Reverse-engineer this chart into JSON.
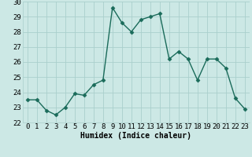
{
  "x": [
    0,
    1,
    2,
    3,
    4,
    5,
    6,
    7,
    8,
    9,
    10,
    11,
    12,
    13,
    14,
    15,
    16,
    17,
    18,
    19,
    20,
    21,
    22,
    23
  ],
  "y": [
    23.5,
    23.5,
    22.8,
    22.5,
    23.0,
    23.9,
    23.8,
    24.5,
    24.8,
    29.6,
    28.6,
    28.0,
    28.8,
    29.0,
    29.2,
    26.2,
    26.7,
    26.2,
    24.8,
    26.2,
    26.2,
    25.6,
    23.6,
    22.9
  ],
  "line_color": "#1a6b5a",
  "marker": "D",
  "markersize": 2.5,
  "linewidth": 1.0,
  "xlabel": "Humidex (Indice chaleur)",
  "xlabel_fontsize": 7,
  "ylim": [
    22,
    30
  ],
  "xlim": [
    -0.5,
    23.5
  ],
  "yticks": [
    22,
    23,
    24,
    25,
    26,
    27,
    28,
    29,
    30
  ],
  "xticks": [
    0,
    1,
    2,
    3,
    4,
    5,
    6,
    7,
    8,
    9,
    10,
    11,
    12,
    13,
    14,
    15,
    16,
    17,
    18,
    19,
    20,
    21,
    22,
    23
  ],
  "background_color": "#cce8e5",
  "grid_color": "#aacfcc",
  "tick_fontsize": 6.5,
  "font_family": "monospace"
}
